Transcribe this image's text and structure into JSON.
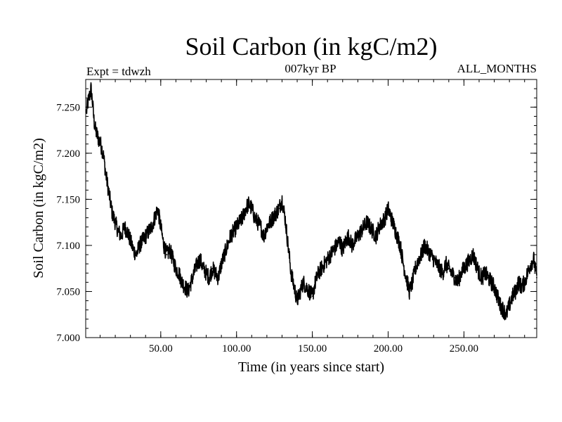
{
  "chart_data": {
    "type": "line",
    "title": "Soil Carbon (in kgC/m2)",
    "subtitle_left": "Expt = tdwzh",
    "subtitle_center": "007kyr BP",
    "subtitle_right": "ALL_MONTHS",
    "xlabel": "Time (in years since start)",
    "ylabel": "Soil Carbon (in kgC/m2)",
    "xlim": [
      0.5,
      298
    ],
    "ylim": [
      7.0,
      7.28
    ],
    "xticks": [
      50,
      100,
      150,
      200,
      250
    ],
    "xtick_labels": [
      "50.00",
      "100.00",
      "150.00",
      "200.00",
      "250.00"
    ],
    "yticks": [
      7.0,
      7.05,
      7.1,
      7.15,
      7.2,
      7.25
    ],
    "ytick_labels": [
      "7.000",
      "7.050",
      "7.100",
      "7.150",
      "7.200",
      "7.250"
    ],
    "grid": false,
    "series": [
      {
        "name": "Soil Carbon",
        "color": "#000000",
        "x": [
          1,
          2,
          3,
          4,
          5,
          6,
          7,
          8,
          9,
          10,
          12,
          14,
          16,
          18,
          20,
          22,
          24,
          26,
          28,
          30,
          32,
          34,
          36,
          38,
          40,
          42,
          44,
          46,
          48,
          50,
          52,
          54,
          56,
          58,
          60,
          62,
          64,
          66,
          68,
          70,
          72,
          74,
          76,
          78,
          80,
          82,
          84,
          86,
          88,
          90,
          92,
          94,
          96,
          98,
          100,
          102,
          104,
          106,
          108,
          110,
          112,
          114,
          116,
          118,
          120,
          122,
          124,
          126,
          128,
          130,
          132,
          134,
          136,
          138,
          140,
          142,
          144,
          146,
          148,
          150,
          152,
          154,
          156,
          158,
          160,
          162,
          164,
          166,
          168,
          170,
          172,
          174,
          176,
          178,
          180,
          182,
          184,
          186,
          188,
          190,
          192,
          194,
          196,
          198,
          200,
          202,
          204,
          206,
          208,
          210,
          212,
          214,
          216,
          218,
          220,
          222,
          224,
          226,
          228,
          230,
          232,
          234,
          236,
          238,
          240,
          242,
          244,
          246,
          248,
          250,
          252,
          254,
          256,
          258,
          260,
          262,
          264,
          266,
          268,
          270,
          272,
          274,
          276,
          278,
          280,
          282,
          284,
          286,
          288,
          290,
          292,
          294,
          296,
          298
        ],
        "values": [
          7.245,
          7.255,
          7.262,
          7.27,
          7.255,
          7.235,
          7.225,
          7.22,
          7.215,
          7.212,
          7.2,
          7.175,
          7.155,
          7.135,
          7.125,
          7.115,
          7.11,
          7.12,
          7.115,
          7.105,
          7.095,
          7.09,
          7.1,
          7.105,
          7.11,
          7.115,
          7.12,
          7.13,
          7.14,
          7.12,
          7.1,
          7.09,
          7.095,
          7.085,
          7.075,
          7.07,
          7.06,
          7.055,
          7.05,
          7.06,
          7.07,
          7.08,
          7.085,
          7.075,
          7.07,
          7.065,
          7.075,
          7.07,
          7.065,
          7.08,
          7.09,
          7.1,
          7.11,
          7.115,
          7.12,
          7.125,
          7.13,
          7.14,
          7.145,
          7.14,
          7.13,
          7.125,
          7.12,
          7.11,
          7.12,
          7.125,
          7.13,
          7.135,
          7.14,
          7.15,
          7.13,
          7.1,
          7.07,
          7.055,
          7.04,
          7.05,
          7.06,
          7.055,
          7.05,
          7.045,
          7.06,
          7.07,
          7.075,
          7.08,
          7.085,
          7.09,
          7.095,
          7.1,
          7.105,
          7.095,
          7.105,
          7.11,
          7.1,
          7.105,
          7.11,
          7.115,
          7.12,
          7.125,
          7.12,
          7.115,
          7.11,
          7.12,
          7.125,
          7.13,
          7.14,
          7.13,
          7.12,
          7.11,
          7.1,
          7.08,
          7.065,
          7.05,
          7.06,
          7.075,
          7.085,
          7.09,
          7.1,
          7.095,
          7.09,
          7.085,
          7.08,
          7.075,
          7.07,
          7.08,
          7.075,
          7.07,
          7.065,
          7.06,
          7.07,
          7.075,
          7.08,
          7.085,
          7.09,
          7.08,
          7.07,
          7.065,
          7.07,
          7.065,
          7.06,
          7.055,
          7.045,
          7.035,
          7.03,
          7.025,
          7.035,
          7.045,
          7.05,
          7.06,
          7.055,
          7.06,
          7.07,
          7.08,
          7.085,
          7.065
        ]
      }
    ]
  }
}
